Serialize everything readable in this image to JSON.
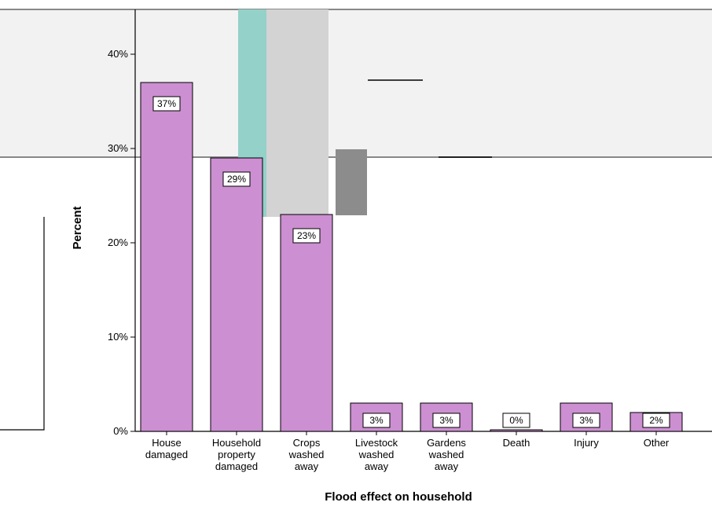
{
  "chart_data": {
    "type": "bar",
    "xlabel": "Flood effect on household",
    "ylabel": "Percent",
    "ylim": [
      0,
      45
    ],
    "yticks": [
      "0%",
      "10%",
      "20%",
      "30%",
      "40%"
    ],
    "ytick_values": [
      0,
      10,
      20,
      30,
      40
    ],
    "grid": false,
    "categories": [
      "House damaged",
      "Household property damaged",
      "Crops washed away",
      "Livestock washed away",
      "Gardens washed away",
      "Death",
      "Injury",
      "Other"
    ],
    "values": [
      37,
      29,
      23,
      3,
      3,
      0,
      3,
      2
    ],
    "data_labels": [
      "37%",
      "29%",
      "23%",
      "3%",
      "3%",
      "0%",
      "3%",
      "2%"
    ],
    "bar_color": "#cc8fd1",
    "bar_stroke": "#000000"
  }
}
